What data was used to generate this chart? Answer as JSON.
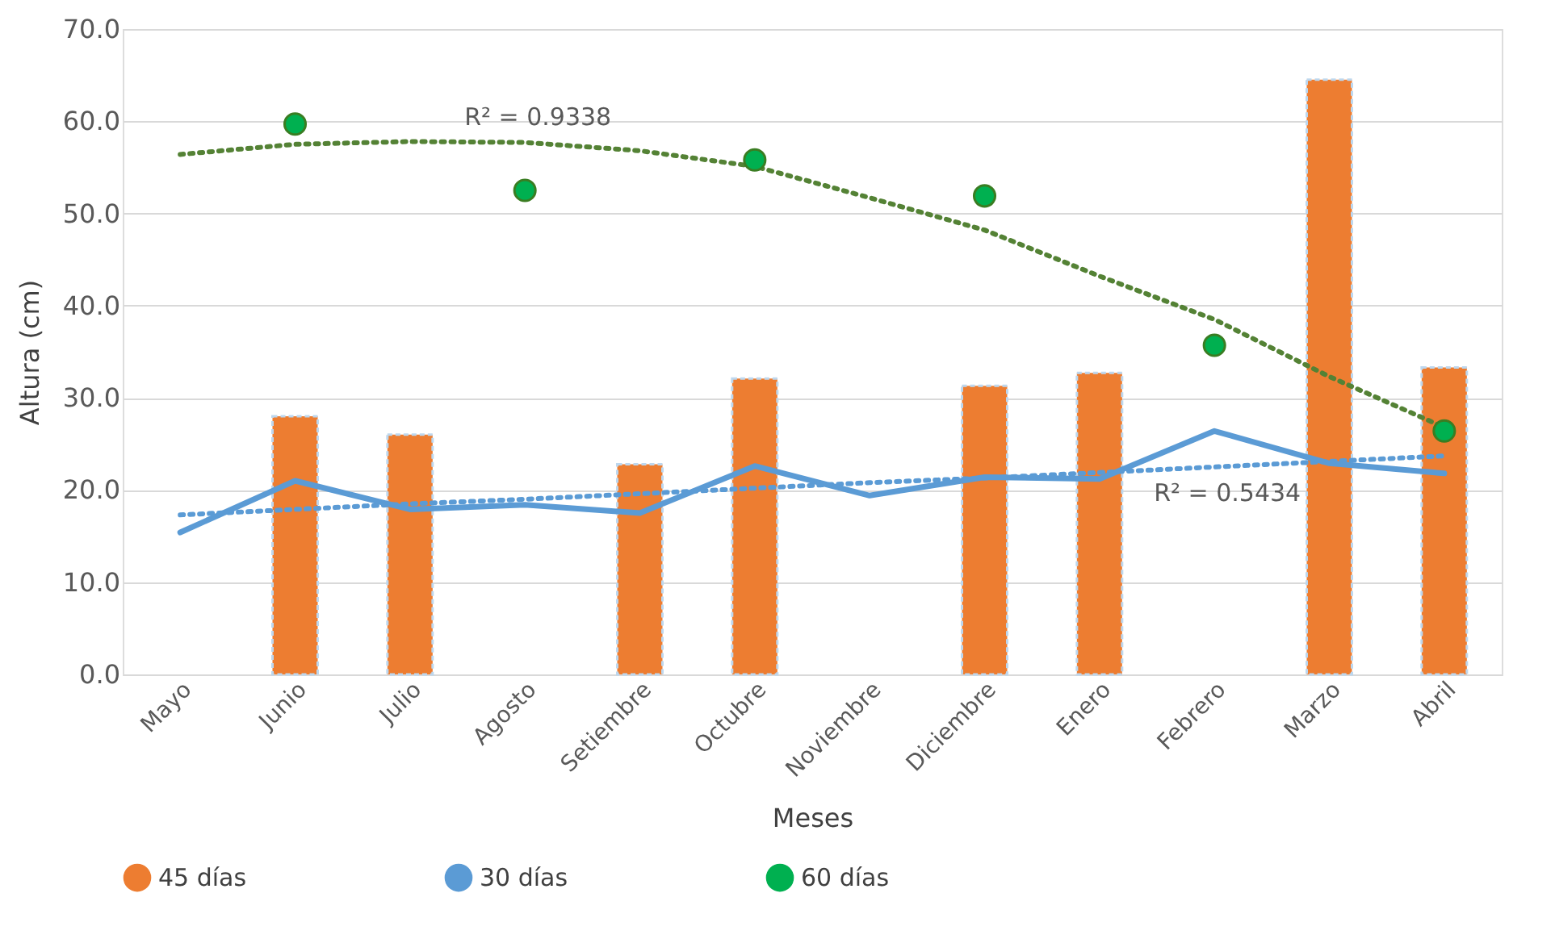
{
  "chart_data": {
    "type": "bar",
    "xlabel": "Meses",
    "ylabel": "Altura (cm)",
    "categories": [
      "Mayo",
      "Junio",
      "Julio",
      "Agosto",
      "Setiembre",
      "Octubre",
      "Noviembre",
      "Diciembre",
      "Enero",
      "Febrero",
      "Marzo",
      "Abril"
    ],
    "series": [
      {
        "name": "45 días",
        "color": "#ed7d31",
        "values": [
          null,
          28.0,
          26.0,
          null,
          22.8,
          32.1,
          null,
          31.3,
          32.7,
          null,
          64.5,
          33.3
        ]
      },
      {
        "type": "line",
        "color": "#548235",
        "line_style": "dotted",
        "values": [
          56.4,
          57.5,
          57.8,
          57.7,
          56.8,
          55.1,
          51.7,
          48.2,
          43.2,
          38.5,
          32.3,
          26.8
        ]
      },
      {
        "type": "line",
        "color": "#5b9bd5",
        "line_style": "dotted",
        "values": [
          17.3,
          17.9,
          18.5,
          19.0,
          19.6,
          20.2,
          20.8,
          21.3,
          21.9,
          22.5,
          23.1,
          23.7
        ]
      },
      {
        "name": "30 días",
        "type": "line",
        "color": "#5b9bd5",
        "line_style": "solid",
        "values": [
          15.4,
          21.0,
          17.9,
          18.4,
          17.5,
          22.6,
          19.4,
          21.4,
          21.2,
          26.4,
          22.9,
          21.8
        ]
      },
      {
        "name": "60 días",
        "type": "scatter",
        "color": "#00b050",
        "marker": "circle",
        "values": [
          null,
          59.7,
          null,
          52.5,
          null,
          55.8,
          null,
          51.9,
          null,
          35.7,
          null,
          26.4
        ]
      }
    ],
    "ylim": [
      0,
      70
    ],
    "yticks": [
      {
        "value": 0,
        "label": "0.0"
      },
      {
        "value": 10,
        "label": "10.0"
      },
      {
        "value": 20,
        "label": "20.0"
      },
      {
        "value": 30,
        "label": "30.0"
      },
      {
        "value": 40,
        "label": "40.0"
      },
      {
        "value": 50,
        "label": "50.0"
      },
      {
        "value": 60,
        "label": "60.0"
      },
      {
        "value": 70,
        "label": "70.0"
      }
    ],
    "grid": "y",
    "legend": "bottom",
    "annotations": [
      "R² = 0.9338",
      "R² = 0.5434"
    ]
  }
}
